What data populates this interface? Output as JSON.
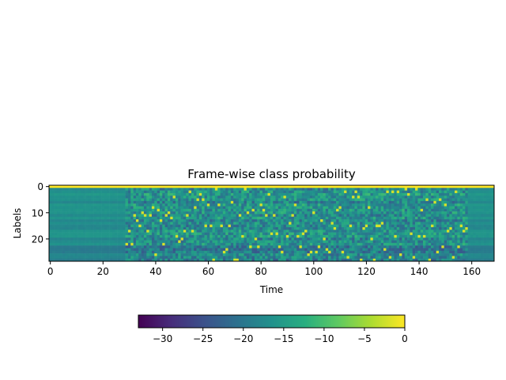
{
  "chart_data": {
    "type": "heatmap",
    "title": "Frame-wise class probability",
    "xlabel": "Time",
    "ylabel": "Labels",
    "xlim": [
      0,
      169
    ],
    "ylim": [
      29,
      0
    ],
    "n_time_frames": 169,
    "n_labels": 29,
    "x_ticks": [
      "0",
      "20",
      "40",
      "60",
      "80",
      "100",
      "120",
      "140",
      "160"
    ],
    "y_ticks": [
      "0",
      "10",
      "20"
    ],
    "colormap": "viridis",
    "colorbar": {
      "orientation": "horizontal",
      "range": [
        -33,
        0
      ],
      "ticks": [
        "−30",
        "−25",
        "−20",
        "−15",
        "−10",
        "−5",
        "0"
      ]
    },
    "description_values": {
      "label_0_value": 0,
      "background_value": -17,
      "peak_value": -2
    }
  }
}
